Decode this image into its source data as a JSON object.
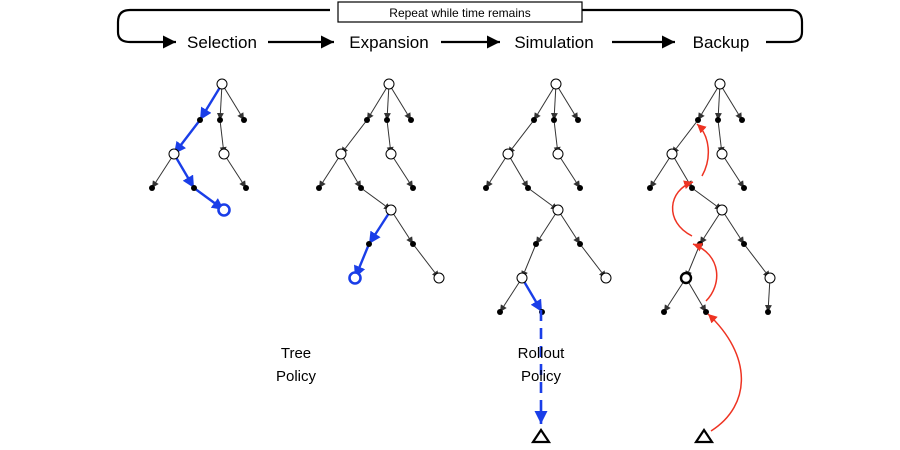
{
  "loop": {
    "label": "Repeat while time remains"
  },
  "stages": [
    {
      "label": "Selection"
    },
    {
      "label": "Expansion"
    },
    {
      "label": "Simulation"
    },
    {
      "label": "Backup"
    }
  ],
  "policies": {
    "tree": {
      "line1": "Tree",
      "line2": "Policy"
    },
    "rollout": {
      "line1": "Rollout",
      "line2": "Policy"
    }
  },
  "colors": {
    "tree_edge": "#333333",
    "highlight_blue": "#1a3ee8",
    "backup_red": "#ee3322"
  }
}
